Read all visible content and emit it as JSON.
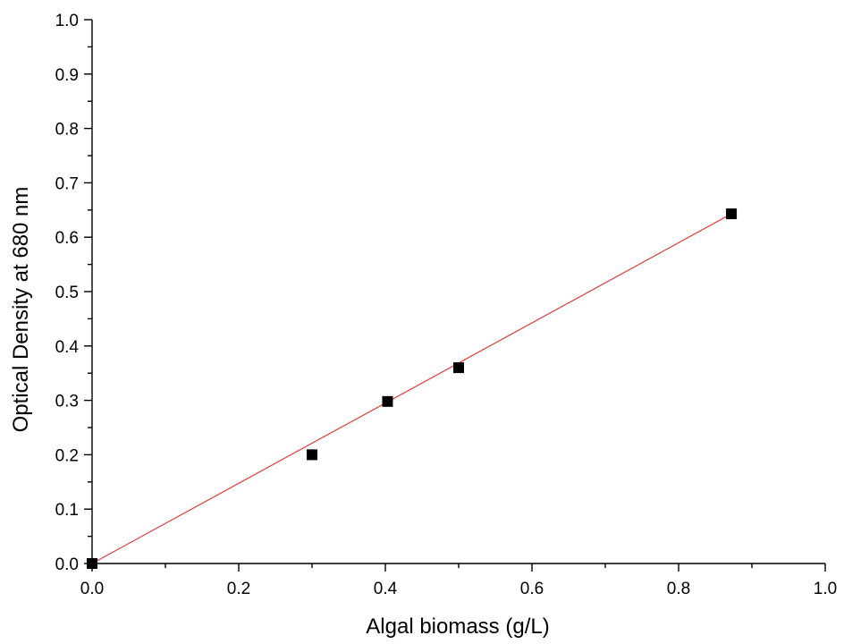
{
  "chart_data": {
    "type": "scatter",
    "title": "",
    "xlabel": "Algal biomass (g/L)",
    "ylabel": "Optical Density at 680 nm",
    "xlim": [
      0.0,
      1.0
    ],
    "ylim": [
      0.0,
      1.0
    ],
    "x_ticks": [
      "0.0",
      "0.2",
      "0.4",
      "0.6",
      "0.8",
      "1.0"
    ],
    "y_ticks": [
      "0.0",
      "0.1",
      "0.2",
      "0.3",
      "0.4",
      "0.5",
      "0.6",
      "0.7",
      "0.8",
      "0.9",
      "1.0"
    ],
    "grid": false,
    "legend": "none",
    "series": [
      {
        "marker": "square",
        "color": "#000000",
        "x": [
          0.0,
          0.3,
          0.403,
          0.5,
          0.872
        ],
        "y": [
          0.0,
          0.2,
          0.298,
          0.36,
          0.643
        ]
      }
    ],
    "fit_line": {
      "color": "#e03c3c",
      "x": [
        0.0,
        0.872
      ],
      "y": [
        0.0,
        0.643
      ]
    }
  }
}
